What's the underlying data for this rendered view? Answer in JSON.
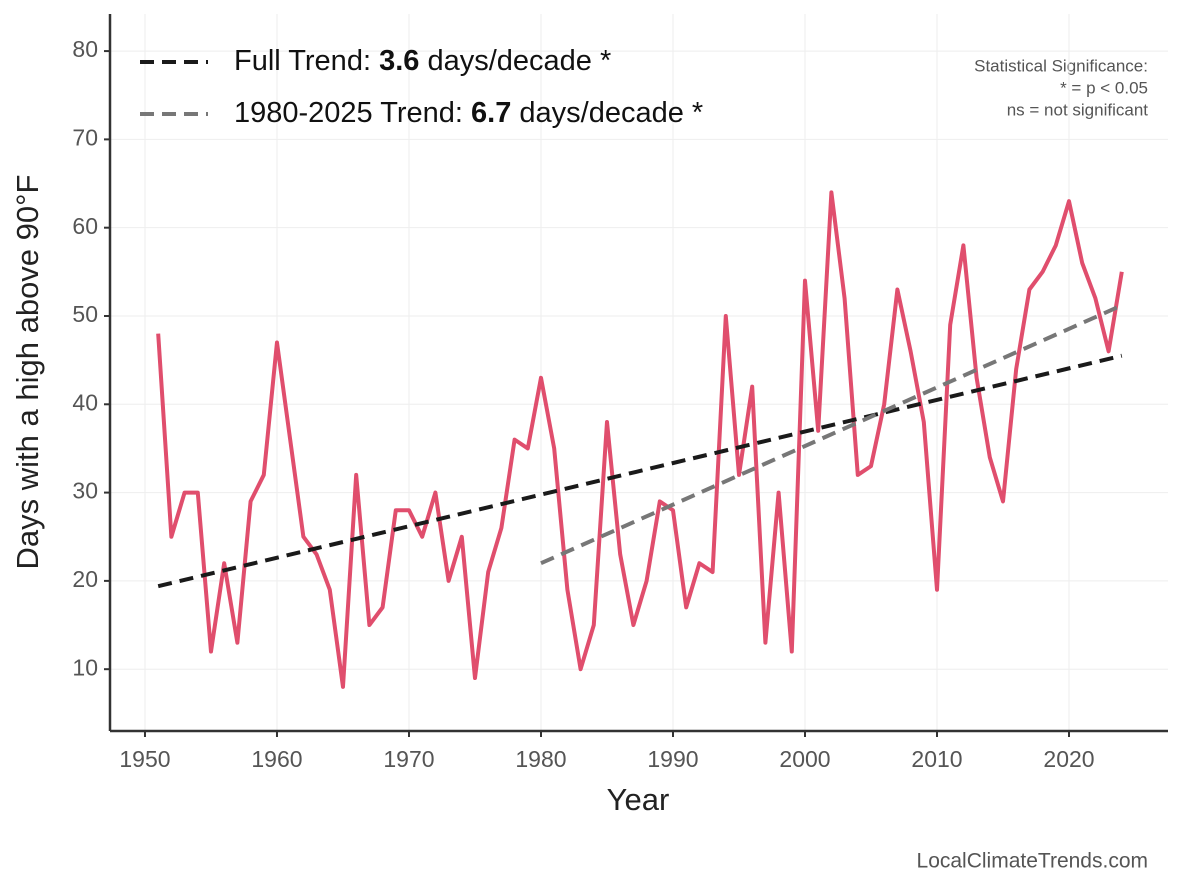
{
  "chart_data": {
    "type": "line",
    "x_label": "Year",
    "y_label": "Days with a high above 90°F",
    "xlim": [
      1947.35,
      2027.5
    ],
    "ylim": [
      3,
      84.2
    ],
    "xticks": [
      1950,
      1960,
      1970,
      1980,
      1990,
      2000,
      2010,
      2020
    ],
    "yticks": [
      10,
      20,
      30,
      40,
      50,
      60,
      70,
      80
    ],
    "grid": true,
    "legend": "top-left",
    "series": [
      {
        "x": [
          1951,
          1952,
          1953,
          1954,
          1955,
          1956,
          1957,
          1958,
          1959,
          1960,
          1961,
          1962,
          1963,
          1964,
          1965,
          1966,
          1967,
          1968,
          1969,
          1970,
          1971,
          1972,
          1973,
          1974,
          1975,
          1976,
          1977,
          1978,
          1979,
          1980,
          1981,
          1982,
          1983,
          1984,
          1985,
          1986,
          1987,
          1988,
          1989,
          1990,
          1991,
          1992,
          1993,
          1994,
          1995,
          1996,
          1997,
          1998,
          1999,
          2000,
          2001,
          2002,
          2003,
          2004,
          2005,
          2006,
          2007,
          2008,
          2009,
          2010,
          2011,
          2012,
          2013,
          2014,
          2015,
          2016,
          2017,
          2018,
          2019,
          2020,
          2021,
          2022,
          2023,
          2024
        ],
        "values": [
          48,
          25,
          30,
          30,
          12,
          22,
          13,
          29,
          32,
          47,
          36,
          25,
          23,
          19,
          8,
          32,
          15,
          17,
          28,
          28,
          25,
          30,
          20,
          25,
          9,
          21,
          26,
          36,
          35,
          43,
          35,
          19,
          10,
          15,
          38,
          23,
          15,
          20,
          29,
          28,
          17,
          22,
          21,
          50,
          32,
          42,
          13,
          30,
          12,
          54,
          37,
          64,
          52,
          32,
          33,
          40,
          53,
          46,
          38,
          19,
          49,
          58,
          43,
          34,
          29,
          44,
          53,
          55,
          58,
          63,
          56,
          52,
          46,
          55
        ],
        "color": "#e04e6d",
        "dash": false
      },
      {
        "name": "Full Trend: 3.6 days/decade *",
        "x": [
          1951,
          2024
        ],
        "values": [
          19.4,
          45.5
        ],
        "color": "#1a1a1a",
        "dash": true
      },
      {
        "name": "1980-2025 Trend: 6.7 days/decade *",
        "x": [
          1980,
          2024
        ],
        "values": [
          22,
          51.2
        ],
        "color": "#777777",
        "dash": true
      }
    ],
    "annotations": [
      "Statistical Significance:",
      "* = p < 0.05",
      "ns = not significant"
    ],
    "source": "LocalClimateTrends.com"
  }
}
